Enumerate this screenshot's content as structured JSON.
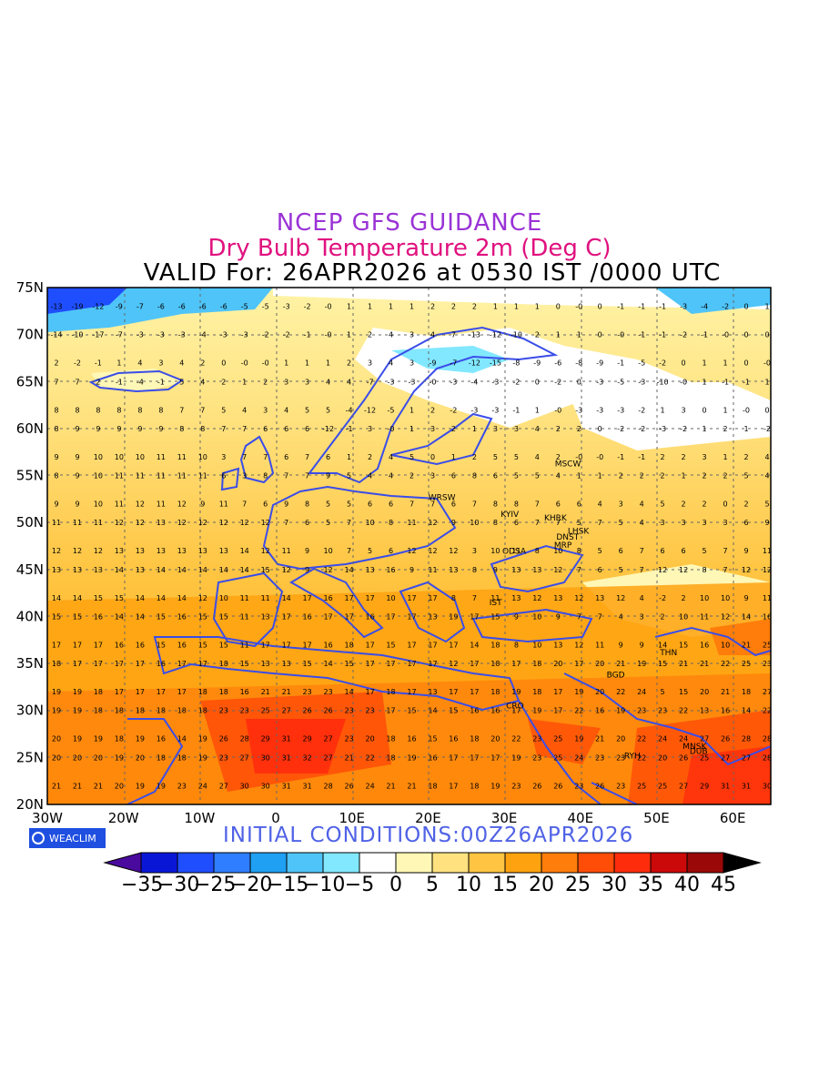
{
  "titles": {
    "line1": "NCEP GFS GUIDANCE",
    "line2": "Dry Bulb Temperature 2m (Deg C)",
    "line3": "VALID For: 26APR2026 at 0530 IST /0000 UTC"
  },
  "map": {
    "lat_labels": [
      "75N",
      "70N",
      "65N",
      "60N",
      "55N",
      "50N",
      "45N",
      "40N",
      "35N",
      "30N",
      "25N",
      "20N"
    ],
    "lon_labels": [
      "30W",
      "20W",
      "10W",
      "0",
      "10E",
      "20E",
      "30E",
      "40E",
      "50E",
      "60E"
    ],
    "lat_range": [
      20,
      75
    ],
    "lon_range": [
      -30,
      65
    ],
    "cities": [
      {
        "name": "MSCW",
        "lon": 37.6,
        "lat": 55.8
      },
      {
        "name": "KYIV",
        "lon": 30.5,
        "lat": 50.4
      },
      {
        "name": "KHRK",
        "lon": 36.2,
        "lat": 50.0
      },
      {
        "name": "LHSK",
        "lon": 39.3,
        "lat": 48.6
      },
      {
        "name": "DNST",
        "lon": 37.8,
        "lat": 48.0
      },
      {
        "name": "MRP",
        "lon": 37.5,
        "lat": 47.1
      },
      {
        "name": "ODSA",
        "lon": 30.7,
        "lat": 46.5
      },
      {
        "name": "WRSW",
        "lon": 21.0,
        "lat": 52.2
      },
      {
        "name": "IST",
        "lon": 29.0,
        "lat": 41.0
      },
      {
        "name": "THN",
        "lon": 51.4,
        "lat": 35.7
      },
      {
        "name": "BGD",
        "lon": 44.4,
        "lat": 33.3
      },
      {
        "name": "CRO",
        "lon": 31.2,
        "lat": 30.0
      },
      {
        "name": "RYH",
        "lon": 46.7,
        "lat": 24.7
      },
      {
        "name": "MNSK",
        "lon": 54.4,
        "lat": 25.7
      },
      {
        "name": "DUB",
        "lon": 55.3,
        "lat": 25.2
      }
    ],
    "field_legend": "2m temperature (deg C) printed on a grid over the map",
    "gridded_values": [
      {
        "lat": 73,
        "row": "-13 -19 -12 -9 -7 -6 -6 -6 -6 -5 -5 -3 -2 -0 1 1 1 1 2 2 2 1 1 1 0 -0 0 -1 -1 -1 -3 -4 -2 0 1"
      },
      {
        "lat": 70,
        "row": "-14 -10 -17 -7 -3 -3 -3 -4 -3 -3 -2 -2 -1 -0 1 2 4 3 4 7 -13 -12 -10 2 1 1 0 -0 -1 -1 -2 -1 -0 0 0"
      },
      {
        "lat": 67,
        "row": "2 -2 -1 1 4 3 4 2 0 -0 -0 1 1 1 2 3 4 3 -9 -7 -12 -15 -8 -9 -6 -8 -9 -1 -5 -2 0 1 1 0 -0"
      },
      {
        "lat": 65,
        "row": "7 7 2 -1 -4 -1 5 4 2 1 2 3 3 4 4 -7 -3 -3 -0 -3 -4 -3 -2 0 -2 0 -3 -5 -3 -10 -0 1 -1 -1 1"
      },
      {
        "lat": 62,
        "row": "8 8 8 8 8 8 7 7 5 4 3 4 5 5 -4 -12 -5 1 2 -2 -3 -3 -1 1 -0 -3 -3 -3 -2 1 3 0 1 -0 0"
      },
      {
        "lat": 60,
        "row": "8 9 9 9 9 9 8 8 7 7 6 6 6 -12 -1 3 -0 1 3 2 1 3 3 4 2 2 0 -2 -2 -3 -2 1 2 1 -2"
      },
      {
        "lat": 57,
        "row": "9 9 10 10 10 11 11 10 3 7 7 6 7 6 1 2 4 5 0 1 2 5 5 4 2 -0 -0 -1 -1 2 2 3 1 2 4"
      },
      {
        "lat": 55,
        "row": "8 9 10 11 11 11 11 11 6 3 8 7 7 9 5 4 4 2 3 6 8 6 5 5 4 1 1 2 2 2 1 2 2 5 4"
      },
      {
        "lat": 52,
        "row": "9 9 10 11 12 11 12 9 11 7 6 9 8 5 5 6 6 7 7 6 7 8 8 7 6 6 4 3 4 5 2 2 0 2 5"
      },
      {
        "lat": 50,
        "row": "11 11 11 12 12 13 12 12 12 12 12 7 6 5 7 10 8 11 12 9 10 8 6 7 7 5 7 5 4 3 3 3 3 6 9"
      },
      {
        "lat": 47,
        "row": "12 12 12 13 13 13 13 13 13 14 12 11 9 10 7 5 6 12 12 12 3 10 11 8 10 8 5 6 7 6 6 5 7 9 11"
      },
      {
        "lat": 45,
        "row": "13 13 13 14 13 14 14 14 14 14 15 12 9 12 14 13 16 9 11 13 8 9 13 13 12 7 6 5 7 12 12 8 7 12 12"
      },
      {
        "lat": 42,
        "row": "14 14 15 15 14 14 14 12 10 11 11 14 17 16 17 17 10 17 17 8 7 11 13 12 13 12 13 12 4 -2 2 10 10 9 11"
      },
      {
        "lat": 40,
        "row": "15 15 16 14 14 15 16 15 15 11 13 17 16 17 17 16 17 17 13 19 17 15 9 10 9 7 7 4 3 2 10 11 12 14 16"
      },
      {
        "lat": 37,
        "row": "17 17 17 16 16 15 16 15 15 11 17 17 17 16 18 17 15 17 17 17 14 18 8 10 13 12 11 9 9 14 15 16 10 21 25"
      },
      {
        "lat": 35,
        "row": "18 17 17 17 17 16 17 17 18 15 13 13 15 14 15 17 17 17 17 12 17 18 17 18 20 17 20 21 19 15 21 21 22 25 23"
      },
      {
        "lat": 32,
        "row": "19 19 18 17 17 17 17 18 18 16 21 21 23 23 14 17 18 17 13 17 17 18 19 18 17 19 20 22 24 5 15 20 21 18 27"
      },
      {
        "lat": 30,
        "row": "19 19 18 18 18 18 18 18 23 23 25 27 26 26 23 23 17 15 14 15 16 16 17 19 17 22 16 19 23 23 22 13 16 14 22"
      },
      {
        "lat": 27,
        "row": "20 19 19 18 19 16 14 19 26 28 29 31 29 27 23 20 18 16 15 16 18 20 22 23 25 19 21 20 22 24 24 27 26 28 28"
      },
      {
        "lat": 25,
        "row": "20 20 20 19 20 18 18 19 23 27 30 31 32 27 21 22 18 19 16 17 17 17 19 23 25 24 23 23 22 20 26 25 27 27 28"
      },
      {
        "lat": 22,
        "row": "21 21 21 20 19 19 23 24 27 30 30 31 31 28 26 24 21 21 18 17 18 19 23 26 26 23 26 23 25 25 27 29 31 31 30"
      }
    ]
  },
  "footer": {
    "logo": "WEACLIM",
    "initial_conditions": "INITIAL  CONDITIONS:00Z26APR2026"
  },
  "colorbar": {
    "labels": [
      "−35",
      "−30",
      "−25",
      "−20",
      "−15",
      "−10",
      "−5",
      "0",
      "5",
      "10",
      "15",
      "20",
      "25",
      "30",
      "35",
      "40",
      "45"
    ],
    "colors": [
      "#4b0a9e",
      "#0a16d6",
      "#1f4eff",
      "#2f7eff",
      "#1fa0f2",
      "#4fc4f8",
      "#82e8ff",
      "#ffffff",
      "#fff7b5",
      "#ffe27f",
      "#ffc542",
      "#ffa20f",
      "#ff7d0a",
      "#ff4d08",
      "#ff2c0c",
      "#cc0909",
      "#9a0808",
      "#000000"
    ]
  }
}
